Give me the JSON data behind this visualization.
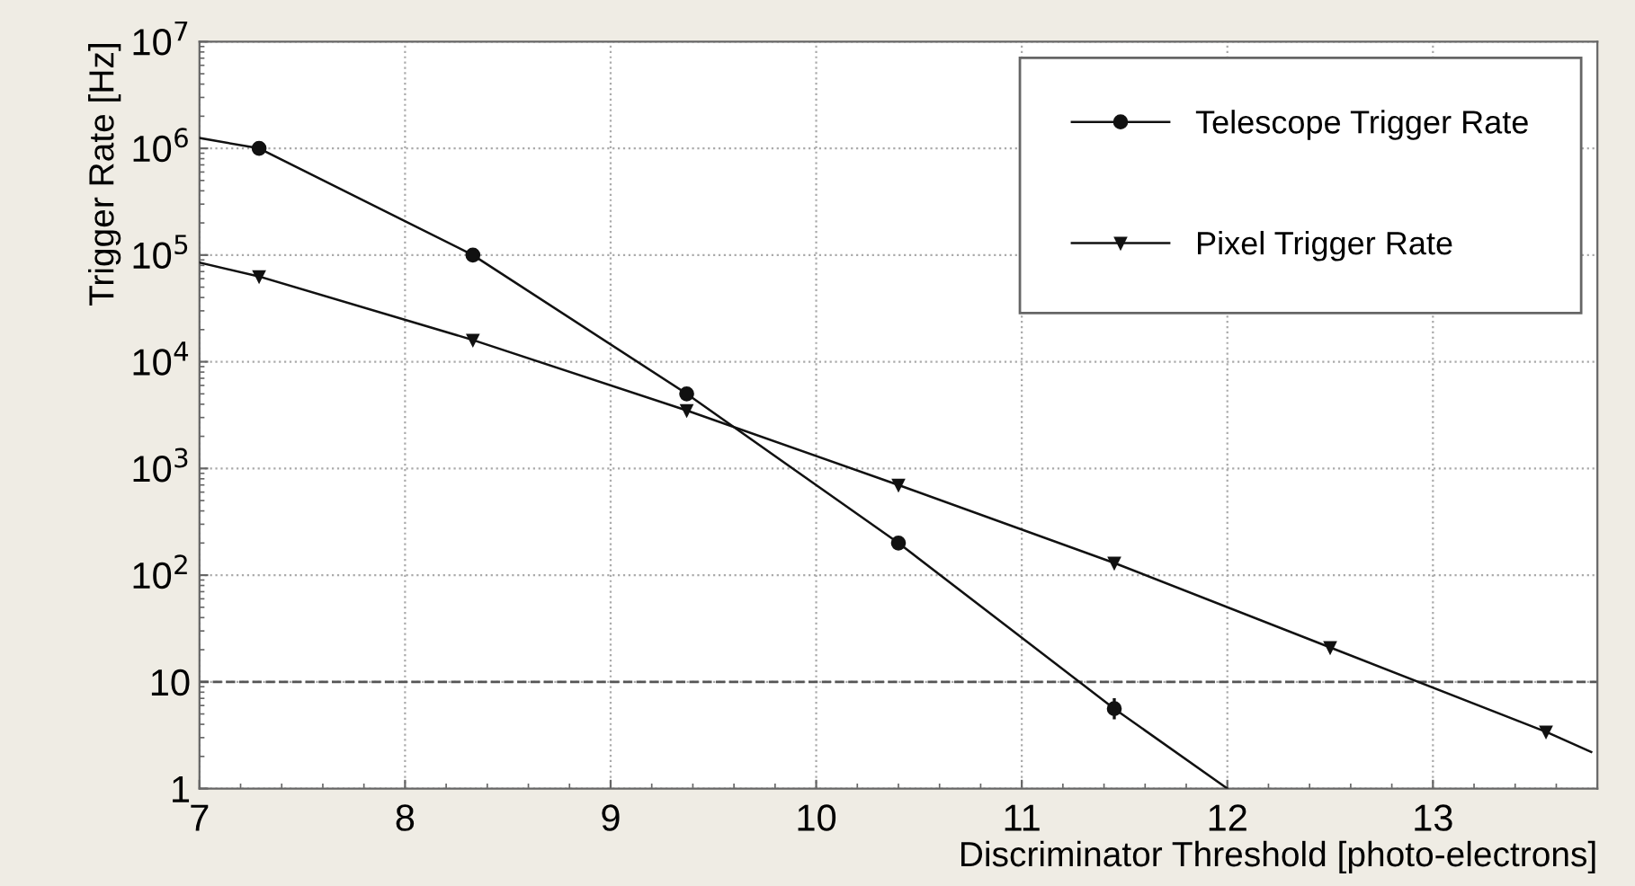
{
  "chart_data": {
    "type": "line",
    "xlabel": "Discriminator Threshold [photo-electrons]",
    "ylabel": "Trigger Rate [Hz]",
    "xlim": [
      7,
      13.8
    ],
    "xticks": [
      7,
      8,
      9,
      10,
      11,
      12,
      13
    ],
    "ylim": [
      1,
      10000000
    ],
    "yticks": [
      1,
      10,
      {
        "value": 100,
        "label": "10$^{2}$"
      },
      {
        "value": 1000,
        "label": "10$^{3}$"
      },
      {
        "value": 10000,
        "label": "10$^{4}$"
      },
      {
        "value": 100000,
        "label": "10$^{5}$"
      },
      {
        "value": 1000000,
        "label": "10$^{6}$"
      },
      {
        "value": 10000000,
        "label": "10$^{7}$"
      }
    ],
    "log": "y",
    "grid": true,
    "legend": "top right",
    "series": [
      {
        "name": "Telescope Trigger Rate",
        "color": "#111111",
        "marker": "circle",
        "x": [
          7.29,
          8.33,
          9.37,
          10.4,
          11.45
        ],
        "values": [
          1000000,
          100000,
          5000,
          200,
          5.6
        ],
        "errors": [
          null,
          null,
          null,
          null,
          [
            4.6,
            6.8
          ]
        ]
      },
      {
        "name": "Pixel Trigger Rate",
        "color": "#111111",
        "marker": "triangle",
        "x": [
          7.29,
          8.33,
          9.37,
          10.4,
          11.45,
          12.5,
          13.55
        ],
        "values": [
          63000,
          16000,
          3500,
          700,
          130,
          21,
          3.4
        ]
      },
      {
        "color": "#111111",
        "marker": "none",
        "x": [
          7,
          7.29
        ],
        "values": [
          1250000,
          1000000
        ]
      },
      {
        "color": "#111111",
        "marker": "none",
        "x": [
          11.45,
          12
        ],
        "values": [
          5.6,
          1
        ]
      },
      {
        "color": "#111111",
        "marker": "none",
        "x": [
          7,
          7.29
        ],
        "values": [
          85000,
          63000
        ]
      },
      {
        "color": "#111111",
        "marker": "none",
        "x": [
          13.55,
          13.77
        ],
        "values": [
          3.4,
          2.2
        ]
      }
    ],
    "ref_lines": [
      {
        "axis": "y",
        "value": 10,
        "color": "#555555",
        "line_style": "dashed"
      }
    ]
  }
}
